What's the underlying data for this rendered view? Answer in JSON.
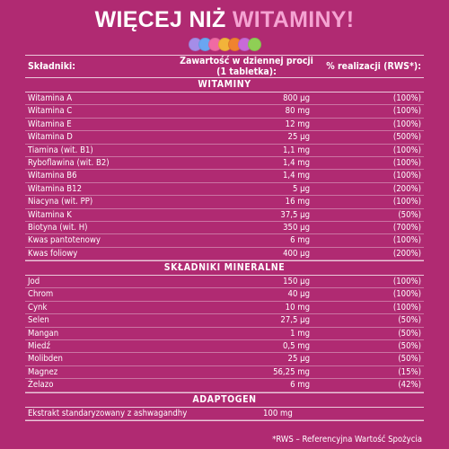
{
  "title": {
    "main": "WIĘCEJ NIŻ ",
    "accent": "WITAMINY!"
  },
  "dot_colors": [
    "#a58de8",
    "#6aa6f2",
    "#f06aa4",
    "#f2b43a",
    "#f0832f",
    "#c86ad8",
    "#8fcf55"
  ],
  "header": {
    "col1": "Składniki:",
    "col2": "Zawartość w dziennej procji (1 tabletka):",
    "col3": "% realizacji (RWS*):"
  },
  "sections": [
    {
      "title": "WITAMINY",
      "rows": [
        {
          "name": "Witamina A",
          "amount": "800 µg",
          "pct": "(100%)"
        },
        {
          "name": "Witamina C",
          "amount": "80 mg",
          "pct": "(100%)"
        },
        {
          "name": "Witamina E",
          "amount": "12 mg",
          "pct": "(100%)"
        },
        {
          "name": "Witamina D",
          "amount": "25 µg",
          "pct": "(500%)"
        },
        {
          "name": "Tiamina (wit. B1)",
          "amount": "1,1 mg",
          "pct": "(100%)"
        },
        {
          "name": "Ryboflawina (wit. B2)",
          "amount": "1,4 mg",
          "pct": "(100%)"
        },
        {
          "name": "Witamina B6",
          "amount": "1,4 mg",
          "pct": "(100%)"
        },
        {
          "name": "Witamina B12",
          "amount": "5 µg",
          "pct": "(200%)"
        },
        {
          "name": "Niacyna (wit. PP)",
          "amount": "16 mg",
          "pct": "(100%)"
        },
        {
          "name": "Witamina K",
          "amount": "37,5 µg",
          "pct": "(50%)"
        },
        {
          "name": "Biotyna (wit. H)",
          "amount": "350 µg",
          "pct": "(700%)"
        },
        {
          "name": "Kwas pantotenowy",
          "amount": "6 mg",
          "pct": "(100%)"
        },
        {
          "name": "Kwas foliowy",
          "amount": "400 µg",
          "pct": "(200%)"
        }
      ]
    },
    {
      "title": "SKŁADNIKI  MINERALNE",
      "rows": [
        {
          "name": "Jod",
          "amount": "150 µg",
          "pct": "(100%)"
        },
        {
          "name": "Chrom",
          "amount": "40 µg",
          "pct": "(100%)"
        },
        {
          "name": "Cynk",
          "amount": "10 mg",
          "pct": "(100%)"
        },
        {
          "name": "Selen",
          "amount": "27,5 µg",
          "pct": "(50%)"
        },
        {
          "name": "Mangan",
          "amount": "1 mg",
          "pct": "(50%)"
        },
        {
          "name": "Miedź",
          "amount": "0,5 mg",
          "pct": "(50%)"
        },
        {
          "name": "Molibden",
          "amount": "25 µg",
          "pct": "(50%)"
        },
        {
          "name": "Magnez",
          "amount": "56,25 mg",
          "pct": "(15%)"
        },
        {
          "name": "Żelazo",
          "amount": "6 mg",
          "pct": "(42%)"
        }
      ]
    },
    {
      "title": "ADAPTOGEN",
      "wide": true,
      "rows": [
        {
          "name": "Ekstrakt standaryzowany z ashwagandhy",
          "amount": "100 mg",
          "pct": ""
        }
      ]
    }
  ],
  "footnote": "*RWS – Referencyjna Wartość Spożycia"
}
